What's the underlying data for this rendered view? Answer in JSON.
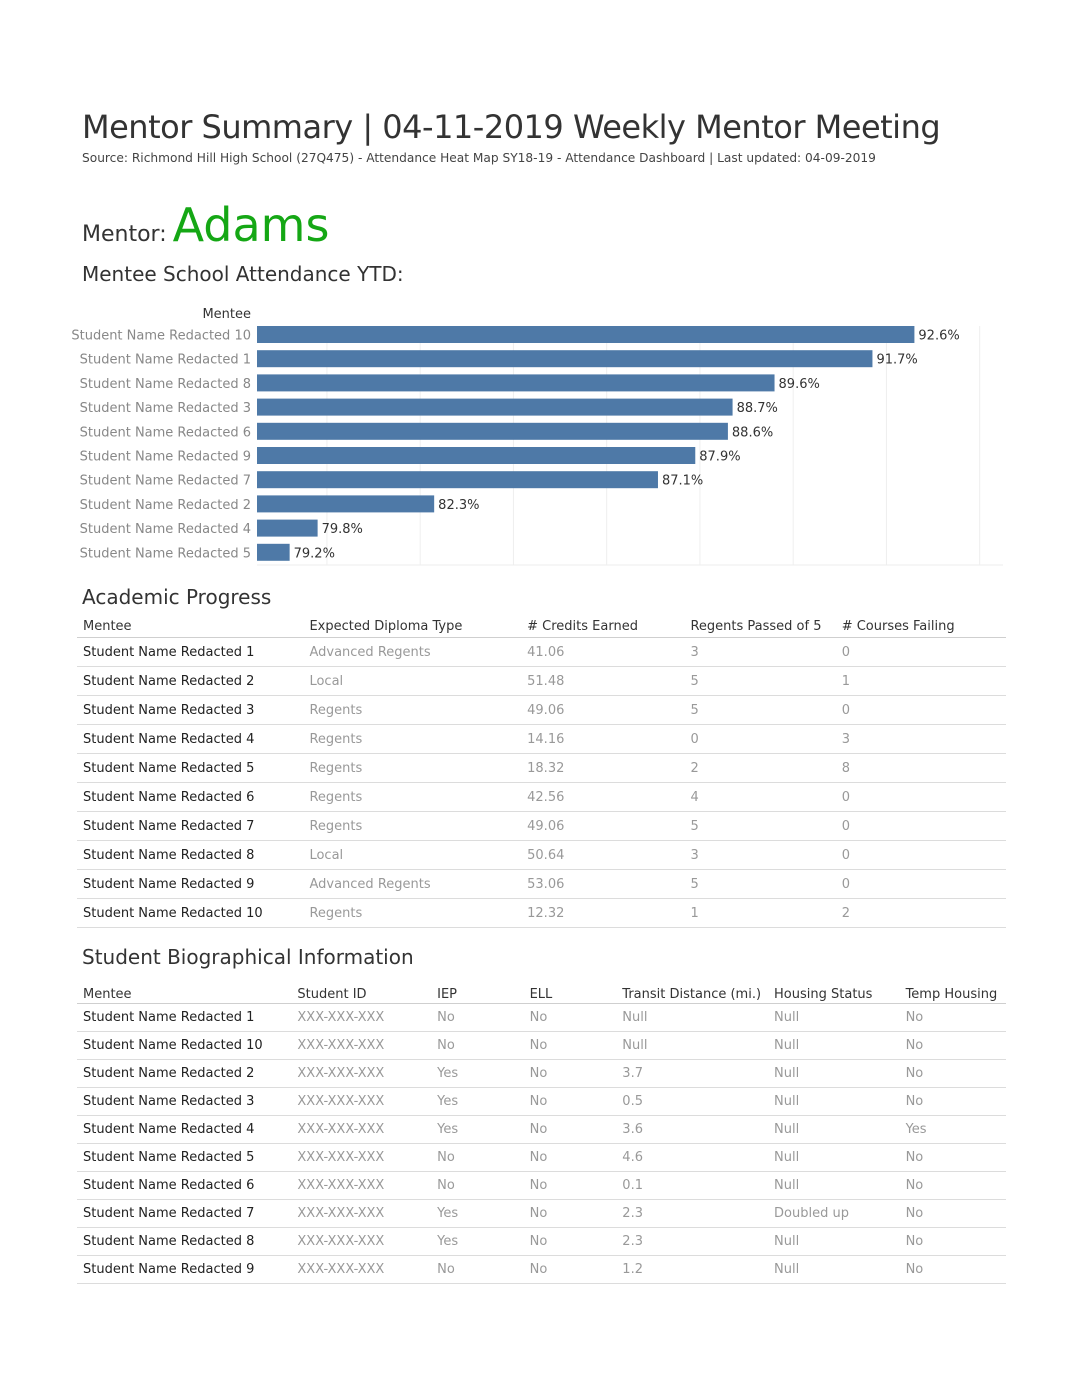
{
  "header": {
    "title": "Mentor Summary | 04-11-2019 Weekly Mentor Meeting",
    "subtitle": "Source: Richmond Hill High School (27Q475) - Attendance Heat Map SY18-19 - Attendance Dashboard | Last updated: 04-09-2019"
  },
  "mentor": {
    "label": "Mentor:",
    "name": "Adams",
    "name_color": "#15a715"
  },
  "attendance_heading": "Mentee School Attendance YTD:",
  "chart_data": {
    "type": "bar",
    "orientation": "horizontal",
    "ylabel": "Mentee",
    "categories": [
      "Student Name Redacted 10",
      "Student Name Redacted 1",
      "Student Name Redacted 8",
      "Student Name Redacted 3",
      "Student Name Redacted 6",
      "Student Name Redacted 9",
      "Student Name Redacted 7",
      "Student Name Redacted 2",
      "Student Name Redacted 4",
      "Student Name Redacted 5"
    ],
    "values": [
      92.6,
      91.7,
      89.6,
      88.7,
      88.6,
      87.9,
      87.1,
      82.3,
      79.8,
      79.2
    ],
    "labels": [
      "92.6%",
      "91.7%",
      "89.6%",
      "88.7%",
      "88.6%",
      "87.9%",
      "87.1%",
      "82.3%",
      "79.8%",
      "79.2%"
    ],
    "xlim": [
      78.5,
      94.5
    ],
    "grid": true,
    "bar_color": "#4e79a7"
  },
  "academic": {
    "heading": "Academic Progress",
    "columns": [
      "Mentee",
      "Expected Diploma Type",
      "# Credits Earned",
      "Regents Passed of 5",
      "# Courses Failing"
    ],
    "rows": [
      [
        "Student Name Redacted 1",
        "Advanced Regents",
        "41.06",
        "3",
        "0"
      ],
      [
        "Student Name Redacted 2",
        "Local",
        "51.48",
        "5",
        "1"
      ],
      [
        "Student Name Redacted 3",
        "Regents",
        "49.06",
        "5",
        "0"
      ],
      [
        "Student Name Redacted 4",
        "Regents",
        "14.16",
        "0",
        "3"
      ],
      [
        "Student Name Redacted 5",
        "Regents",
        "18.32",
        "2",
        "8"
      ],
      [
        "Student Name Redacted 6",
        "Regents",
        "42.56",
        "4",
        "0"
      ],
      [
        "Student Name Redacted 7",
        "Regents",
        "49.06",
        "5",
        "0"
      ],
      [
        "Student Name Redacted 8",
        "Local",
        "50.64",
        "3",
        "0"
      ],
      [
        "Student Name Redacted 9",
        "Advanced Regents",
        "53.06",
        "5",
        "0"
      ],
      [
        "Student Name Redacted 10",
        "Regents",
        "12.32",
        "1",
        "2"
      ]
    ]
  },
  "bio": {
    "heading": "Student Biographical Information",
    "columns": [
      "Mentee",
      "Student ID",
      "IEP",
      "ELL",
      "Transit Distance (mi.)",
      "Housing Status",
      "Temp Housing"
    ],
    "rows": [
      [
        "Student Name Redacted 1",
        "XXX-XXX-XXX",
        "No",
        "No",
        "Null",
        "Null",
        "No"
      ],
      [
        "Student Name Redacted 10",
        "XXX-XXX-XXX",
        "No",
        "No",
        "Null",
        "Null",
        "No"
      ],
      [
        "Student Name Redacted 2",
        "XXX-XXX-XXX",
        "Yes",
        "No",
        "3.7",
        "Null",
        "No"
      ],
      [
        "Student Name Redacted 3",
        "XXX-XXX-XXX",
        "Yes",
        "No",
        "0.5",
        "Null",
        "No"
      ],
      [
        "Student Name Redacted 4",
        "XXX-XXX-XXX",
        "Yes",
        "No",
        "3.6",
        "Null",
        "Yes"
      ],
      [
        "Student Name Redacted 5",
        "XXX-XXX-XXX",
        "No",
        "No",
        "4.6",
        "Null",
        "No"
      ],
      [
        "Student Name Redacted 6",
        "XXX-XXX-XXX",
        "No",
        "No",
        "0.1",
        "Null",
        "No"
      ],
      [
        "Student Name Redacted 7",
        "XXX-XXX-XXX",
        "Yes",
        "No",
        "2.3",
        "Doubled up",
        "No"
      ],
      [
        "Student Name Redacted 8",
        "XXX-XXX-XXX",
        "Yes",
        "No",
        "2.3",
        "Null",
        "No"
      ],
      [
        "Student Name Redacted 9",
        "XXX-XXX-XXX",
        "No",
        "No",
        "1.2",
        "Null",
        "No"
      ]
    ]
  }
}
